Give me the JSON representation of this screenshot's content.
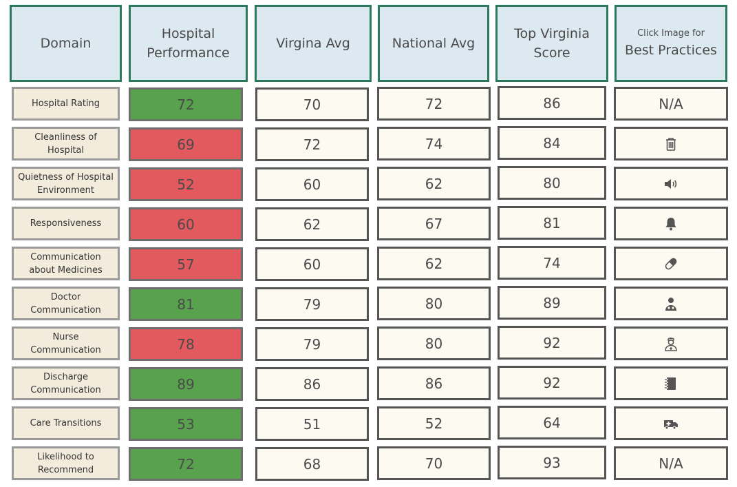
{
  "headers": {
    "domain": [
      "Domain"
    ],
    "performance": [
      "Hospital",
      "Performance"
    ],
    "virginia_avg": [
      "Virgina Avg"
    ],
    "national_avg": [
      "National Avg"
    ],
    "top_virginia": [
      "Top Virginia",
      "Score"
    ],
    "best_practices_small": "Click Image for",
    "best_practices": "Best Practices"
  },
  "colors": {
    "good": "#58a24d",
    "bad": "#e35a5e",
    "header_border": "#2b7a5e"
  },
  "rows": [
    {
      "domain": "Hospital Rating",
      "performance": "72",
      "status": "good",
      "virginia_avg": "70",
      "national_avg": "72",
      "top_virginia": "86",
      "best_practice_text": "N/A",
      "icon": "none"
    },
    {
      "domain": "Cleanliness of Hospital",
      "performance": "69",
      "status": "bad",
      "virginia_avg": "72",
      "national_avg": "74",
      "top_virginia": "84",
      "best_practice_text": "",
      "icon": "trash-icon"
    },
    {
      "domain": "Quietness of Hospital Environment",
      "performance": "52",
      "status": "bad",
      "virginia_avg": "60",
      "national_avg": "62",
      "top_virginia": "80",
      "best_practice_text": "",
      "icon": "speaker-icon"
    },
    {
      "domain": "Responsiveness",
      "performance": "60",
      "status": "bad",
      "virginia_avg": "62",
      "national_avg": "67",
      "top_virginia": "81",
      "best_practice_text": "",
      "icon": "bell-icon"
    },
    {
      "domain": "Communication about Medicines",
      "performance": "57",
      "status": "bad",
      "virginia_avg": "60",
      "national_avg": "62",
      "top_virginia": "74",
      "best_practice_text": "",
      "icon": "pill-icon"
    },
    {
      "domain": "Doctor Communication",
      "performance": "81",
      "status": "good",
      "virginia_avg": "79",
      "national_avg": "80",
      "top_virginia": "89",
      "best_practice_text": "",
      "icon": "doctor-icon"
    },
    {
      "domain": "Nurse Communication",
      "performance": "78",
      "status": "bad",
      "virginia_avg": "79",
      "national_avg": "80",
      "top_virginia": "92",
      "best_practice_text": "",
      "icon": "nurse-icon"
    },
    {
      "domain": "Discharge Communication",
      "performance": "89",
      "status": "good",
      "virginia_avg": "86",
      "national_avg": "86",
      "top_virginia": "92",
      "best_practice_text": "",
      "icon": "notebook-icon"
    },
    {
      "domain": "Care Transitions",
      "performance": "53",
      "status": "good",
      "virginia_avg": "51",
      "national_avg": "52",
      "top_virginia": "64",
      "best_practice_text": "",
      "icon": "ambulance-icon"
    },
    {
      "domain": "Likelihood to Recommend",
      "performance": "72",
      "status": "good",
      "virginia_avg": "68",
      "national_avg": "70",
      "top_virginia": "93",
      "best_practice_text": "N/A",
      "icon": "none"
    }
  ]
}
